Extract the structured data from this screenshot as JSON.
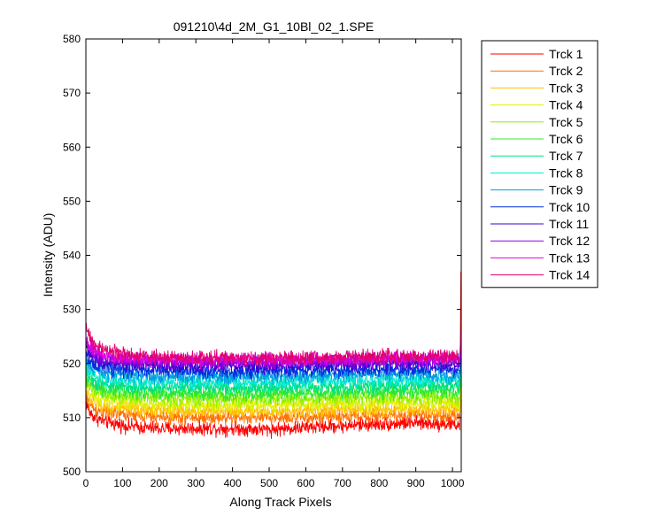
{
  "chart_data": {
    "type": "line",
    "title": "091210\\4d_2M_G1_10Bl_02_1.SPE",
    "xlabel": "Along Track Pixels",
    "ylabel": "Intensity (ADU)",
    "xlim": [
      0,
      1024
    ],
    "ylim": [
      500,
      580
    ],
    "xticks": [
      0,
      100,
      200,
      300,
      400,
      500,
      600,
      700,
      800,
      900,
      1000
    ],
    "yticks": [
      500,
      510,
      520,
      530,
      540,
      550,
      560,
      570,
      580
    ],
    "grid": false,
    "legend_position": "outside-right-top",
    "x": [
      0,
      10,
      25,
      50,
      100,
      150,
      200,
      300,
      400,
      500,
      600,
      700,
      800,
      900,
      1000,
      1020,
      1023
    ],
    "series": [
      {
        "name": "Trck 1",
        "color": "#ff0000",
        "noise": 1.2,
        "values": [
          513,
          511,
          510,
          509.3,
          508.6,
          508.2,
          508,
          508,
          508,
          507.8,
          508.2,
          508.5,
          508.8,
          509,
          508.8,
          508.5,
          537
        ]
      },
      {
        "name": "Trck 2",
        "color": "#ff7000",
        "noise": 1.2,
        "values": [
          514,
          512.5,
          511.5,
          511,
          510.6,
          510.3,
          510.1,
          510,
          510,
          510,
          510.1,
          510.3,
          510.4,
          510.5,
          510.4,
          510.3,
          514
        ]
      },
      {
        "name": "Trck 3",
        "color": "#ffc000",
        "noise": 1.2,
        "values": [
          515,
          513.5,
          512.6,
          512,
          511.6,
          511.4,
          511.3,
          511.2,
          511.2,
          511.2,
          511.3,
          511.4,
          511.5,
          511.6,
          511.5,
          511.4,
          515
        ]
      },
      {
        "name": "Trck 4",
        "color": "#e0f000",
        "noise": 1.2,
        "values": [
          516,
          514.5,
          513.6,
          513.1,
          512.7,
          512.5,
          512.4,
          512.3,
          512.3,
          512.3,
          512.4,
          512.5,
          512.6,
          512.7,
          512.6,
          512.5,
          516
        ]
      },
      {
        "name": "Trck 5",
        "color": "#90f000",
        "noise": 1.2,
        "values": [
          517,
          515.5,
          514.6,
          514.1,
          513.8,
          513.6,
          513.5,
          513.4,
          513.4,
          513.4,
          513.5,
          513.6,
          513.7,
          513.8,
          513.7,
          513.6,
          517
        ]
      },
      {
        "name": "Trck 6",
        "color": "#30e830",
        "noise": 1.2,
        "values": [
          518,
          516.5,
          515.6,
          515.1,
          514.8,
          514.6,
          514.5,
          514.4,
          514.4,
          514.4,
          514.5,
          514.6,
          514.7,
          514.8,
          514.7,
          514.6,
          518
        ]
      },
      {
        "name": "Trck 7",
        "color": "#00e080",
        "noise": 1.2,
        "values": [
          519,
          517.5,
          516.6,
          516.1,
          515.8,
          515.6,
          515.5,
          515.5,
          515.5,
          515.5,
          515.6,
          515.7,
          515.8,
          515.9,
          515.8,
          515.7,
          519
        ]
      },
      {
        "name": "Trck 8",
        "color": "#00e8d0",
        "noise": 1.2,
        "values": [
          520,
          518.6,
          517.7,
          517.2,
          516.9,
          516.7,
          516.6,
          516.6,
          516.6,
          516.6,
          516.7,
          516.8,
          516.9,
          517,
          516.9,
          516.8,
          520
        ]
      },
      {
        "name": "Trck 9",
        "color": "#00a0e0",
        "noise": 1.2,
        "values": [
          521,
          519.6,
          518.7,
          518.2,
          517.9,
          517.7,
          517.6,
          517.6,
          517.6,
          517.6,
          517.7,
          517.8,
          517.9,
          518,
          517.9,
          517.8,
          521
        ]
      },
      {
        "name": "Trck 10",
        "color": "#0030e0",
        "noise": 1.2,
        "values": [
          522,
          520.6,
          519.7,
          519.2,
          518.9,
          518.7,
          518.6,
          518.6,
          518.6,
          518.6,
          518.7,
          518.8,
          518.9,
          519,
          518.9,
          518.8,
          522
        ]
      },
      {
        "name": "Trck 11",
        "color": "#4000d0",
        "noise": 1.2,
        "values": [
          523,
          521.6,
          520.7,
          520.2,
          519.9,
          519.7,
          519.6,
          519.6,
          519.6,
          519.6,
          519.7,
          519.8,
          519.9,
          520,
          519.9,
          519.8,
          523
        ]
      },
      {
        "name": "Trck 12",
        "color": "#9000e0",
        "noise": 1.2,
        "values": [
          524,
          522.5,
          521.5,
          520.9,
          520.5,
          520.3,
          520.2,
          520.2,
          520.2,
          520.2,
          520.3,
          520.4,
          520.5,
          520.6,
          520.5,
          520.4,
          524
        ]
      },
      {
        "name": "Trck 13",
        "color": "#e000e0",
        "noise": 1.2,
        "values": [
          525,
          523.3,
          522.2,
          521.5,
          521.1,
          520.9,
          520.8,
          520.7,
          520.7,
          520.7,
          520.8,
          520.9,
          521,
          521.1,
          521,
          520.9,
          525
        ]
      },
      {
        "name": "Trck 14",
        "color": "#e00070",
        "noise": 1.2,
        "values": [
          527,
          524.8,
          523.4,
          522.4,
          521.8,
          521.4,
          521.2,
          521.1,
          521,
          521,
          521.1,
          521.2,
          521.3,
          521.4,
          521.3,
          521.2,
          526
        ]
      }
    ]
  }
}
